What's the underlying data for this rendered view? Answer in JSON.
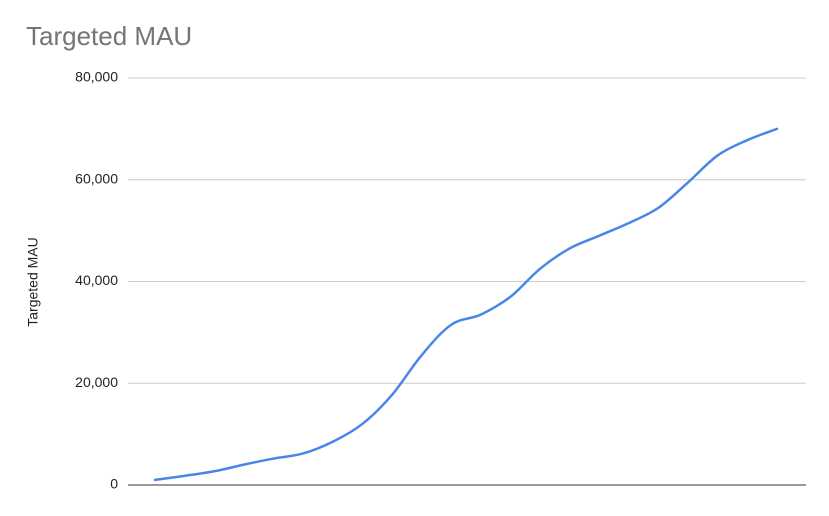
{
  "chart_data": {
    "type": "line",
    "title": "Targeted MAU",
    "y_label": "Targeted MAU",
    "categories": [
      null,
      null,
      null,
      null,
      null,
      null,
      null,
      null,
      null,
      null,
      null,
      null,
      null,
      null,
      null,
      null,
      null,
      null,
      null,
      null,
      null,
      null
    ],
    "series": [
      {
        "name": "Targeted MAU",
        "color": "#4a86e8",
        "values": [
          1000,
          1800,
          2700,
          4000,
          5200,
          6200,
          8500,
          12000,
          17700,
          25500,
          31500,
          33500,
          37000,
          42500,
          46500,
          49000,
          51500,
          54500,
          59500,
          64800,
          67800,
          70000
        ]
      }
    ],
    "ylim": [
      0,
      80000
    ],
    "yticks": [
      0,
      {
        "value": 20000,
        "label": "20,000"
      },
      {
        "value": 40000,
        "label": "40,000"
      },
      {
        "value": 60000,
        "label": "60,000"
      },
      {
        "value": 80000,
        "label": "80,000"
      }
    ],
    "grid": true
  }
}
